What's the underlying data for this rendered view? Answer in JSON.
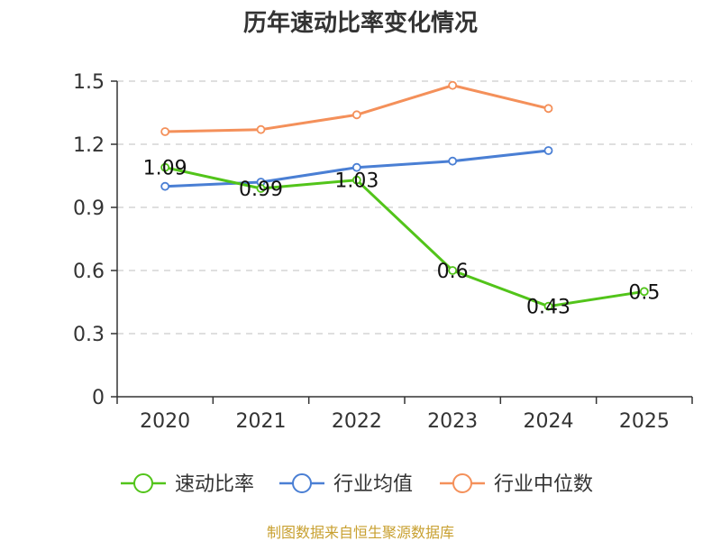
{
  "chart_data": {
    "type": "line",
    "title": "历年速动比率变化情况",
    "categories": [
      "2020",
      "2021",
      "2022",
      "2023",
      "2024",
      "2025"
    ],
    "ylim": [
      0,
      1.5
    ],
    "yticks": [
      "0",
      "0.3",
      "0.6",
      "0.9",
      "1.2",
      "1.5"
    ],
    "ytick_values": [
      0,
      0.3,
      0.6,
      0.9,
      1.2,
      1.5
    ],
    "grid": true,
    "legend_position": "bottom",
    "series": [
      {
        "name": "速动比率",
        "color": "#52c41a",
        "values": [
          1.09,
          0.99,
          1.03,
          0.6,
          0.43,
          0.5
        ],
        "labels": [
          "1.09",
          "0.99",
          "1.03",
          "0.6",
          "0.43",
          "0.5"
        ]
      },
      {
        "name": "行业均值",
        "color": "#4a7fd4",
        "values": [
          1.0,
          1.02,
          1.09,
          1.12,
          1.17,
          null
        ]
      },
      {
        "name": "行业中位数",
        "color": "#f4905a",
        "values": [
          1.26,
          1.27,
          1.34,
          1.48,
          1.37,
          null
        ]
      }
    ],
    "source": "制图数据来自恒生聚源数据库"
  }
}
